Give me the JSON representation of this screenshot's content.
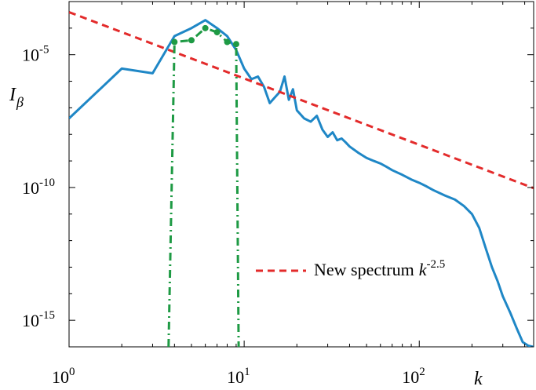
{
  "chart_data": {
    "type": "line",
    "title": "",
    "xlabel": "k",
    "ylabel_main": "I",
    "ylabel_sub": "β",
    "xscale": "log",
    "yscale": "log",
    "xlim": [
      1,
      450
    ],
    "ylim": [
      1e-16,
      0.001
    ],
    "x_ticks": [
      {
        "value": 1,
        "base": "10",
        "exp": "0"
      },
      {
        "value": 10,
        "base": "10",
        "exp": "1"
      },
      {
        "value": 100,
        "base": "10",
        "exp": "2"
      }
    ],
    "y_ticks": [
      {
        "value": 1e-05,
        "base": "10",
        "exp": "-5"
      },
      {
        "value": 1e-10,
        "base": "10",
        "exp": "-10"
      },
      {
        "value": 1e-15,
        "base": "10",
        "exp": "-15"
      }
    ],
    "grid": false,
    "legend_position": "center-right",
    "series": [
      {
        "label_text": "",
        "color": "#1f87c6",
        "style": "solid",
        "x": [
          1,
          2,
          3,
          4,
          5,
          6,
          7,
          8,
          9,
          10,
          11,
          12,
          13,
          14,
          15,
          16,
          17,
          18,
          19,
          20,
          22,
          24,
          26,
          28,
          30,
          32,
          34,
          36,
          38,
          40,
          45,
          50,
          55,
          60,
          65,
          70,
          80,
          90,
          100,
          110,
          120,
          140,
          160,
          180,
          200,
          220,
          240,
          260,
          280,
          300,
          330,
          360,
          390,
          420,
          450
        ],
        "y": [
          4e-08,
          3e-06,
          2e-06,
          5e-05,
          0.0001,
          0.0002,
          0.0001,
          5e-05,
          1.5e-05,
          3e-06,
          1.2e-06,
          1.5e-06,
          6e-07,
          1.5e-07,
          2.5e-07,
          4e-07,
          1.5e-06,
          2e-07,
          5e-07,
          8e-08,
          4e-08,
          3e-08,
          5e-08,
          1.5e-08,
          8e-09,
          1.2e-08,
          6e-09,
          7e-09,
          5e-09,
          3.5e-09,
          2e-09,
          1.3e-09,
          1e-09,
          8e-10,
          6e-10,
          4.5e-10,
          3e-10,
          2e-10,
          1.5e-10,
          1.1e-10,
          8e-11,
          5e-11,
          3.5e-11,
          2e-11,
          1e-11,
          3e-12,
          5e-13,
          1e-13,
          3e-14,
          8e-15,
          2e-15,
          5e-16,
          1.5e-16,
          1.1e-16,
          1e-16
        ]
      },
      {
        "label_text": "New spectrum",
        "label_k": "k",
        "label_exp": "-2.5",
        "color": "#e32b2b",
        "style": "dashed",
        "x": [
          1,
          450
        ],
        "y": [
          0.0004,
          9.45e-11
        ]
      },
      {
        "label_text": "",
        "color": "#1e9a44",
        "style": "dashdot",
        "x": [
          3.7,
          4,
          5,
          6,
          7,
          8,
          9,
          9.3
        ],
        "y": [
          1e-16,
          3e-05,
          3.5e-05,
          0.0001,
          7e-05,
          3e-05,
          2.5e-05,
          1e-16
        ],
        "markers_x": [
          4,
          5,
          6,
          7,
          8,
          9
        ],
        "markers_y": [
          3e-05,
          3.5e-05,
          0.0001,
          7e-05,
          3e-05,
          2.5e-05
        ]
      }
    ]
  }
}
